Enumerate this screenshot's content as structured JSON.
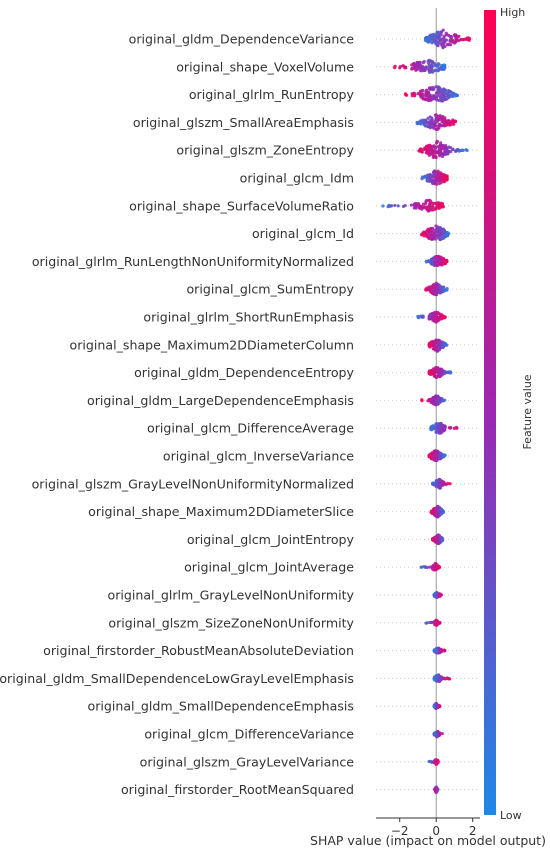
{
  "chart_data": {
    "type": "scatter",
    "subtype": "shap-beeswarm-summary",
    "title": "",
    "xlabel": "SHAP value (impact on model output)",
    "ylabel": "",
    "xlim": [
      -3.3,
      2.4
    ],
    "xticks": [
      -2,
      0,
      2
    ],
    "zero_line": true,
    "grid": false,
    "colorbar": {
      "label": "Feature value",
      "high_label": "High",
      "low_label": "Low",
      "low_color": "#1e88e5",
      "high_color": "#ff0052",
      "placement": "right"
    },
    "features": [
      {
        "name": "original_gldm_DependenceVariance",
        "min": -0.6,
        "max": 1.9,
        "core": [
          -0.4,
          1.2
        ],
        "lowpos": 0.15,
        "spread": 9
      },
      {
        "name": "original_shape_VoxelVolume",
        "min": -2.3,
        "max": 0.5,
        "core": [
          -1.4,
          0.4
        ],
        "lowpos": 0.9,
        "spread": 7
      },
      {
        "name": "original_glrlm_RunEntropy",
        "min": -1.8,
        "max": 1.2,
        "core": [
          -0.9,
          0.8
        ],
        "lowpos": 0.75,
        "spread": 9
      },
      {
        "name": "original_glszm_SmallAreaEmphasis",
        "min": -1.1,
        "max": 1.1,
        "core": [
          -0.7,
          0.8
        ],
        "lowpos": 0.4,
        "spread": 8
      },
      {
        "name": "original_glszm_ZoneEntropy",
        "min": -1.0,
        "max": 1.7,
        "core": [
          -0.6,
          0.7
        ],
        "lowpos": 0.8,
        "spread": 9
      },
      {
        "name": "original_glcm_Idm",
        "min": -0.8,
        "max": 0.6,
        "core": [
          -0.5,
          0.5
        ],
        "lowpos": 0.4,
        "spread": 8
      },
      {
        "name": "original_shape_SurfaceVolumeRatio",
        "min": -3.0,
        "max": 0.4,
        "core": [
          -1.2,
          0.3
        ],
        "lowpos": 0.1,
        "spread": 6
      },
      {
        "name": "original_glcm_Id",
        "min": -0.8,
        "max": 0.7,
        "core": [
          -0.6,
          0.6
        ],
        "lowpos": 0.5,
        "spread": 8
      },
      {
        "name": "original_glrlm_RunLengthNonUniformityNormalized",
        "min": -0.6,
        "max": 0.6,
        "core": [
          -0.3,
          0.5
        ],
        "lowpos": 0.3,
        "spread": 6
      },
      {
        "name": "original_glcm_SumEntropy",
        "min": -0.6,
        "max": 0.6,
        "core": [
          -0.4,
          0.4
        ],
        "lowpos": 0.7,
        "spread": 6
      },
      {
        "name": "original_glrlm_ShortRunEmphasis",
        "min": -1.1,
        "max": 0.5,
        "core": [
          -0.4,
          0.3
        ],
        "lowpos": 0.2,
        "spread": 6
      },
      {
        "name": "original_shape_Maximum2DDiameterColumn",
        "min": -0.4,
        "max": 0.6,
        "core": [
          -0.3,
          0.4
        ],
        "lowpos": 0.5,
        "spread": 7
      },
      {
        "name": "original_gldm_DependenceEntropy",
        "min": -0.4,
        "max": 0.9,
        "core": [
          -0.3,
          0.4
        ],
        "lowpos": 0.5,
        "spread": 6
      },
      {
        "name": "original_gldm_LargeDependenceEmphasis",
        "min": -0.8,
        "max": 0.6,
        "core": [
          -0.3,
          0.3
        ],
        "lowpos": 0.5,
        "spread": 5
      },
      {
        "name": "original_glcm_DifferenceAverage",
        "min": -0.3,
        "max": 1.2,
        "core": [
          -0.2,
          0.5
        ],
        "lowpos": 0.1,
        "spread": 6
      },
      {
        "name": "original_glcm_InverseVariance",
        "min": -0.4,
        "max": 0.5,
        "core": [
          -0.3,
          0.3
        ],
        "lowpos": 0.5,
        "spread": 6
      },
      {
        "name": "original_glszm_GrayLevelNonUniformityNormalized",
        "min": -0.2,
        "max": 0.8,
        "core": [
          -0.1,
          0.4
        ],
        "lowpos": 0.2,
        "spread": 5
      },
      {
        "name": "original_shape_Maximum2DDiameterSlice",
        "min": -0.3,
        "max": 0.4,
        "core": [
          -0.2,
          0.3
        ],
        "lowpos": 0.5,
        "spread": 6
      },
      {
        "name": "original_glcm_JointEntropy",
        "min": -0.2,
        "max": 0.4,
        "core": [
          -0.1,
          0.3
        ],
        "lowpos": 0.5,
        "spread": 5
      },
      {
        "name": "original_glcm_JointAverage",
        "min": -0.9,
        "max": 0.2,
        "core": [
          -0.2,
          0.1
        ],
        "lowpos": 0.3,
        "spread": 4
      },
      {
        "name": "original_glrlm_GrayLevelNonUniformity",
        "min": -0.1,
        "max": 0.3,
        "core": [
          -0.1,
          0.2
        ],
        "lowpos": 0.3,
        "spread": 3
      },
      {
        "name": "original_glszm_SizeZoneNonUniformity",
        "min": -0.6,
        "max": 0.2,
        "core": [
          -0.1,
          0.1
        ],
        "lowpos": 0.3,
        "spread": 3
      },
      {
        "name": "original_firstorder_RobustMeanAbsoluteDeviation",
        "min": -0.1,
        "max": 0.5,
        "core": [
          -0.1,
          0.3
        ],
        "lowpos": 0.2,
        "spread": 3
      },
      {
        "name": "original_gldm_SmallDependenceLowGrayLevelEmphasis",
        "min": -0.1,
        "max": 0.8,
        "core": [
          -0.1,
          0.3
        ],
        "lowpos": 0.2,
        "spread": 4
      },
      {
        "name": "original_gldm_SmallDependenceEmphasis",
        "min": -0.1,
        "max": 0.2,
        "core": [
          -0.1,
          0.1
        ],
        "lowpos": 0.4,
        "spread": 3
      },
      {
        "name": "original_glcm_DifferenceVariance",
        "min": -0.1,
        "max": 0.4,
        "core": [
          -0.1,
          0.2
        ],
        "lowpos": 0.2,
        "spread": 3
      },
      {
        "name": "original_glszm_GrayLevelVariance",
        "min": -0.4,
        "max": 0.1,
        "core": [
          -0.1,
          0.1
        ],
        "lowpos": 0.4,
        "spread": 3
      },
      {
        "name": "original_firstorder_RootMeanSquared",
        "min": -0.1,
        "max": 0.1,
        "core": [
          -0.05,
          0.05
        ],
        "lowpos": 0.5,
        "spread": 3
      }
    ]
  }
}
